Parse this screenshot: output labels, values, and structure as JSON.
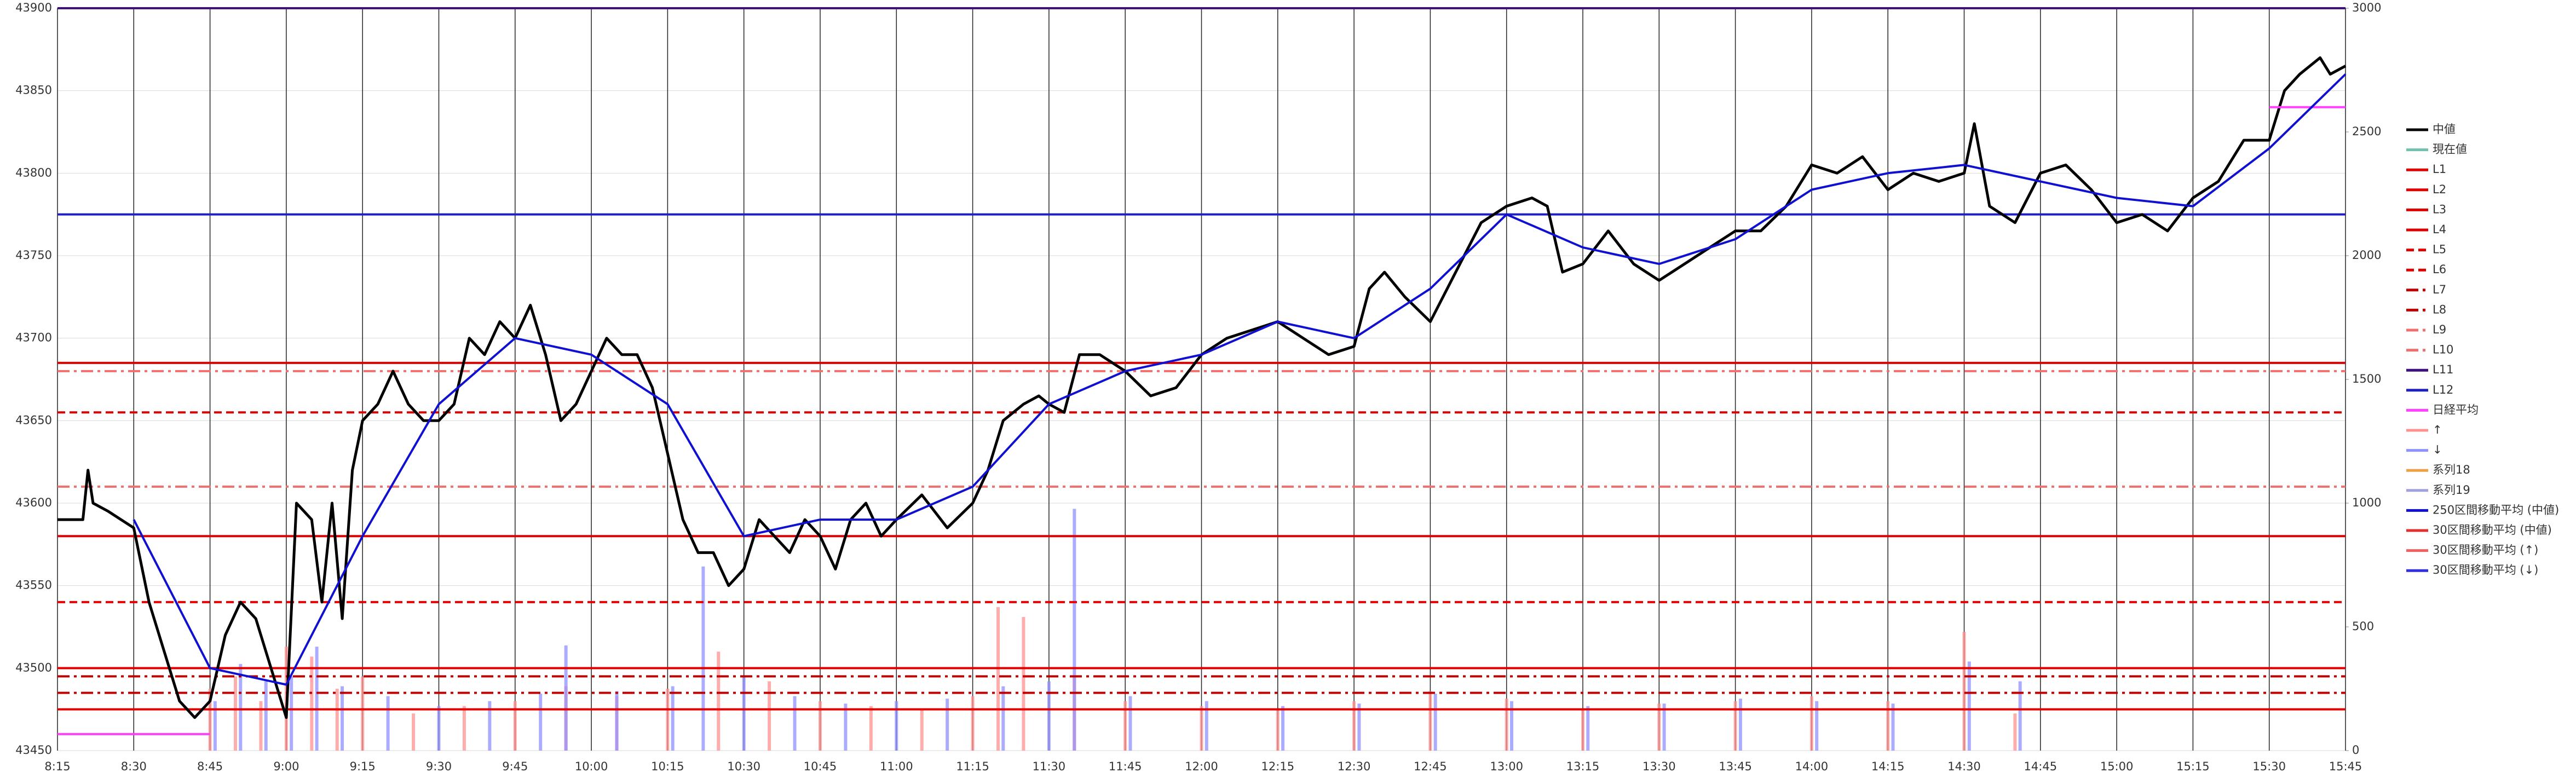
{
  "chart_data": {
    "type": "line",
    "xlim": [
      "8:15",
      "15:45"
    ],
    "xticks": [
      "8:15",
      "8:30",
      "8:45",
      "9:00",
      "9:15",
      "9:30",
      "9:45",
      "10:00",
      "10:15",
      "10:30",
      "10:45",
      "11:00",
      "11:15",
      "11:30",
      "11:45",
      "12:00",
      "12:15",
      "12:30",
      "12:45",
      "13:00",
      "13:15",
      "13:30",
      "13:45",
      "14:00",
      "14:15",
      "14:30",
      "14:45",
      "15:00",
      "15:15",
      "15:30",
      "15:45"
    ],
    "ylim": [
      43450,
      43900
    ],
    "yticks": [
      43450,
      43500,
      43550,
      43600,
      43650,
      43700,
      43750,
      43800,
      43850,
      43900
    ],
    "y2lim": [
      0,
      3000
    ],
    "y2ticks": [
      0,
      500,
      1000,
      1500,
      2000,
      2500,
      3000
    ],
    "grid": true,
    "legend": "right",
    "series": [
      {
        "name": "中値",
        "color": "#000000",
        "x": [
          "8:15",
          "8:20",
          "8:21",
          "8:22",
          "8:25",
          "8:30",
          "8:33",
          "8:36",
          "8:39",
          "8:42",
          "8:45",
          "8:48",
          "8:51",
          "8:54",
          "8:57",
          "9:00",
          "9:02",
          "9:05",
          "9:07",
          "9:09",
          "9:11",
          "9:13",
          "9:15",
          "9:18",
          "9:21",
          "9:24",
          "9:27",
          "9:30",
          "9:33",
          "9:36",
          "9:39",
          "9:42",
          "9:45",
          "9:48",
          "9:51",
          "9:54",
          "9:57",
          "10:00",
          "10:03",
          "10:06",
          "10:09",
          "10:12",
          "10:15",
          "10:18",
          "10:21",
          "10:24",
          "10:27",
          "10:30",
          "10:33",
          "10:36",
          "10:39",
          "10:42",
          "10:45",
          "10:48",
          "10:51",
          "10:54",
          "10:57",
          "11:00",
          "11:05",
          "11:10",
          "11:15",
          "11:18",
          "11:21",
          "11:25",
          "11:28",
          "11:30",
          "11:33",
          "11:36",
          "11:40",
          "11:45",
          "11:50",
          "11:55",
          "12:00",
          "12:05",
          "12:10",
          "12:15",
          "12:20",
          "12:25",
          "12:30",
          "12:33",
          "12:36",
          "12:40",
          "12:45",
          "12:50",
          "12:55",
          "13:00",
          "13:05",
          "13:08",
          "13:11",
          "13:15",
          "13:20",
          "13:25",
          "13:30",
          "13:35",
          "13:40",
          "13:45",
          "13:50",
          "13:55",
          "14:00",
          "14:05",
          "14:10",
          "14:15",
          "14:20",
          "14:25",
          "14:30",
          "14:32",
          "14:35",
          "14:40",
          "14:45",
          "14:50",
          "14:55",
          "15:00",
          "15:05",
          "15:10",
          "15:15",
          "15:20",
          "15:25",
          "15:30",
          "15:33",
          "15:36",
          "15:40",
          "15:42",
          "15:45"
        ],
        "values": [
          43590,
          43590,
          43620,
          43600,
          43595,
          43585,
          43540,
          43510,
          43480,
          43470,
          43480,
          43520,
          43540,
          43530,
          43500,
          43470,
          43600,
          43590,
          43540,
          43600,
          43530,
          43620,
          43650,
          43660,
          43680,
          43660,
          43650,
          43650,
          43660,
          43700,
          43690,
          43710,
          43700,
          43720,
          43690,
          43650,
          43660,
          43680,
          43700,
          43690,
          43690,
          43670,
          43630,
          43590,
          43570,
          43570,
          43550,
          43560,
          43590,
          43580,
          43570,
          43590,
          43580,
          43560,
          43590,
          43600,
          43580,
          43590,
          43605,
          43585,
          43600,
          43620,
          43650,
          43660,
          43665,
          43660,
          43655,
          43690,
          43690,
          43680,
          43665,
          43670,
          43690,
          43700,
          43705,
          43710,
          43700,
          43690,
          43695,
          43730,
          43740,
          43725,
          43710,
          43740,
          43770,
          43780,
          43785,
          43780,
          43740,
          43745,
          43765,
          43745,
          43735,
          43745,
          43755,
          43765,
          43765,
          43780,
          43805,
          43800,
          43810,
          43790,
          43800,
          43795,
          43800,
          43830,
          43780,
          43770,
          43800,
          43805,
          43790,
          43770,
          43775,
          43765,
          43785,
          43795,
          43820,
          43820,
          43850,
          43860,
          43870,
          43860,
          43865
        ]
      },
      {
        "name": "現在値",
        "color": "#70c0b0"
      },
      {
        "name": "L1",
        "color": "#e00000",
        "level": 43685,
        "dash": "solid"
      },
      {
        "name": "L2",
        "color": "#e00000",
        "level": 43580,
        "dash": "solid"
      },
      {
        "name": "L3",
        "color": "#e00000",
        "level": 43500,
        "dash": "solid"
      },
      {
        "name": "L4",
        "color": "#e00000",
        "level": 43475,
        "dash": "solid"
      },
      {
        "name": "L5",
        "color": "#e00000",
        "level": 43655,
        "dash": "dashed"
      },
      {
        "name": "L6",
        "color": "#e00000",
        "level": 43540,
        "dash": "dashed"
      },
      {
        "name": "L7",
        "color": "#c00000",
        "level": 43495,
        "dash": "dashdot"
      },
      {
        "name": "L8",
        "color": "#c00000",
        "level": 43485,
        "dash": "dashdot"
      },
      {
        "name": "L9",
        "color": "#f07070",
        "level": 43680,
        "dash": "dashdot"
      },
      {
        "name": "L10",
        "color": "#f07070",
        "level": 43610,
        "dash": "dashdot"
      },
      {
        "name": "L11",
        "color": "#401080",
        "level": 43900,
        "dash": "solid"
      },
      {
        "name": "L12",
        "color": "#2020c0",
        "level": 43775,
        "dash": "solid"
      },
      {
        "name": "日経平均",
        "color": "#ff40ff",
        "x": [
          "8:15",
          "8:45",
          "15:00",
          "15:30",
          "15:45"
        ],
        "values": [
          43460,
          43460,
          null,
          43840,
          43840
        ]
      },
      {
        "name": "↑",
        "color": "#ff9090",
        "axis": "y2",
        "kind": "bar",
        "x": [
          "8:45",
          "8:50",
          "8:55",
          "9:00",
          "9:05",
          "9:10",
          "9:15",
          "9:25",
          "9:35",
          "9:45",
          "9:55",
          "10:05",
          "10:15",
          "10:25",
          "10:35",
          "10:45",
          "10:55",
          "11:05",
          "11:15",
          "11:20",
          "11:25",
          "11:35",
          "11:45",
          "12:00",
          "12:15",
          "12:30",
          "12:45",
          "13:00",
          "13:15",
          "13:30",
          "13:45",
          "14:00",
          "14:15",
          "14:30",
          "14:40"
        ],
        "values": [
          250,
          300,
          200,
          420,
          380,
          250,
          300,
          150,
          180,
          200,
          260,
          220,
          250,
          400,
          280,
          200,
          180,
          170,
          220,
          580,
          540,
          300,
          200,
          180,
          170,
          200,
          240,
          210,
          170,
          190,
          200,
          220,
          200,
          480,
          150
        ]
      },
      {
        "name": "↓",
        "color": "#9090ff",
        "axis": "y2",
        "kind": "bar",
        "x": [
          "8:46",
          "8:51",
          "8:56",
          "9:01",
          "9:06",
          "9:11",
          "9:20",
          "9:30",
          "9:40",
          "9:50",
          "9:55",
          "10:05",
          "10:16",
          "10:22",
          "10:30",
          "10:40",
          "10:50",
          "11:00",
          "11:10",
          "11:21",
          "11:30",
          "11:35",
          "11:46",
          "12:01",
          "12:16",
          "12:31",
          "12:46",
          "13:01",
          "13:16",
          "13:31",
          "13:46",
          "14:01",
          "14:16",
          "14:31",
          "14:41"
        ],
        "values": [
          200,
          350,
          280,
          300,
          420,
          260,
          220,
          180,
          200,
          230,
          425,
          240,
          260,
          744,
          300,
          220,
          190,
          200,
          210,
          260,
          280,
          977,
          220,
          200,
          180,
          190,
          230,
          200,
          180,
          190,
          210,
          200,
          190,
          360,
          280
        ]
      },
      {
        "name": "系列18",
        "color": "#f0a040"
      },
      {
        "name": "系列19",
        "color": "#a0a0e0"
      },
      {
        "name": "250区間移動平均 (中値)",
        "color": "#1010d0",
        "x": [
          "8:30",
          "8:45",
          "9:00",
          "9:15",
          "9:30",
          "9:45",
          "10:00",
          "10:15",
          "10:30",
          "10:45",
          "11:00",
          "11:15",
          "11:30",
          "11:45",
          "12:00",
          "12:15",
          "12:30",
          "12:45",
          "13:00",
          "13:15",
          "13:30",
          "13:45",
          "14:00",
          "14:15",
          "14:30",
          "14:45",
          "15:00",
          "15:15",
          "15:30",
          "15:45"
        ],
        "values": [
          43590,
          43500,
          43490,
          43580,
          43660,
          43700,
          43690,
          43660,
          43580,
          43590,
          43590,
          43610,
          43660,
          43680,
          43690,
          43710,
          43700,
          43730,
          43775,
          43755,
          43745,
          43760,
          43790,
          43800,
          43805,
          43795,
          43785,
          43780,
          43815,
          43860
        ]
      },
      {
        "name": "30区間移動平均 (中値)",
        "color": "#e03030"
      },
      {
        "name": "30区間移動平均 (↑)",
        "color": "#f06060"
      },
      {
        "name": "30区間移動平均 (↓)",
        "color": "#3030e0"
      }
    ]
  }
}
